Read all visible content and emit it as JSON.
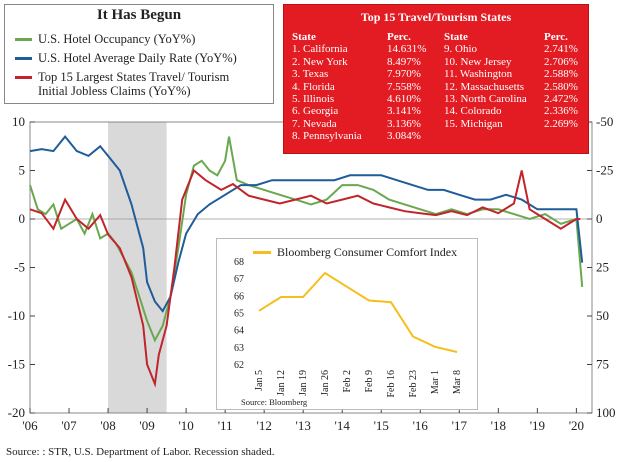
{
  "chart_data": [
    {
      "type": "line",
      "title": "It Has Begun",
      "x": [
        "'06",
        "'07",
        "'08",
        "'09",
        "'10",
        "'11",
        "'12",
        "'13",
        "'14",
        "'15",
        "'16",
        "'17",
        "'18",
        "'19",
        "'20"
      ],
      "y_left_ticks": [
        10,
        5,
        0,
        -5,
        -10,
        -15,
        -20
      ],
      "y_right_ticks": [
        -50,
        -25,
        0,
        25,
        50,
        75,
        100
      ],
      "ylim_left": [
        -20,
        10
      ],
      "ylim_right": [
        100,
        -50
      ],
      "recession_shaded": [
        2008.0,
        2009.5
      ],
      "series": [
        {
          "name": "U.S. Hotel Occupancy (YoY%)",
          "color": "#6aa84f",
          "axis": "left",
          "points": [
            [
              2006.0,
              3.5
            ],
            [
              2006.2,
              1.0
            ],
            [
              2006.4,
              0.5
            ],
            [
              2006.6,
              1.5
            ],
            [
              2006.8,
              -1.0
            ],
            [
              2007.0,
              -0.5
            ],
            [
              2007.2,
              0.0
            ],
            [
              2007.4,
              -1.5
            ],
            [
              2007.6,
              0.5
            ],
            [
              2007.8,
              -2.0
            ],
            [
              2008.0,
              -1.5
            ],
            [
              2008.2,
              -2.5
            ],
            [
              2008.4,
              -4.0
            ],
            [
              2008.6,
              -5.5
            ],
            [
              2008.8,
              -8.0
            ],
            [
              2009.0,
              -10.5
            ],
            [
              2009.2,
              -12.5
            ],
            [
              2009.4,
              -11.0
            ],
            [
              2009.6,
              -8.0
            ],
            [
              2009.8,
              -3.0
            ],
            [
              2010.0,
              2.5
            ],
            [
              2010.2,
              5.5
            ],
            [
              2010.4,
              6.0
            ],
            [
              2010.6,
              5.0
            ],
            [
              2010.8,
              4.5
            ],
            [
              2011.0,
              6.0
            ],
            [
              2011.1,
              8.5
            ],
            [
              2011.3,
              4.0
            ],
            [
              2011.6,
              3.5
            ],
            [
              2012.0,
              3.0
            ],
            [
              2012.4,
              2.5
            ],
            [
              2012.8,
              2.0
            ],
            [
              2013.2,
              1.5
            ],
            [
              2013.6,
              2.0
            ],
            [
              2014.0,
              3.5
            ],
            [
              2014.4,
              3.5
            ],
            [
              2014.8,
              3.0
            ],
            [
              2015.2,
              2.0
            ],
            [
              2015.6,
              1.5
            ],
            [
              2016.0,
              1.0
            ],
            [
              2016.4,
              0.5
            ],
            [
              2016.8,
              1.0
            ],
            [
              2017.2,
              0.5
            ],
            [
              2017.6,
              1.0
            ],
            [
              2018.0,
              1.0
            ],
            [
              2018.4,
              0.5
            ],
            [
              2018.8,
              0.0
            ],
            [
              2019.2,
              0.5
            ],
            [
              2019.6,
              -0.5
            ],
            [
              2020.0,
              0.0
            ],
            [
              2020.15,
              -7.0
            ]
          ]
        },
        {
          "name": "U.S. Hotel Average Daily Rate (YoY%)",
          "color": "#1f5c99",
          "axis": "left",
          "points": [
            [
              2006.0,
              7.0
            ],
            [
              2006.3,
              7.2
            ],
            [
              2006.6,
              7.0
            ],
            [
              2006.9,
              8.5
            ],
            [
              2007.2,
              7.0
            ],
            [
              2007.5,
              6.5
            ],
            [
              2007.8,
              7.5
            ],
            [
              2008.0,
              6.5
            ],
            [
              2008.3,
              5.0
            ],
            [
              2008.6,
              1.5
            ],
            [
              2008.9,
              -3.0
            ],
            [
              2009.0,
              -6.5
            ],
            [
              2009.2,
              -8.5
            ],
            [
              2009.4,
              -9.5
            ],
            [
              2009.6,
              -8.0
            ],
            [
              2009.8,
              -4.5
            ],
            [
              2010.0,
              -1.5
            ],
            [
              2010.3,
              0.5
            ],
            [
              2010.6,
              1.5
            ],
            [
              2011.0,
              2.5
            ],
            [
              2011.4,
              3.5
            ],
            [
              2011.8,
              3.5
            ],
            [
              2012.2,
              4.0
            ],
            [
              2012.6,
              4.0
            ],
            [
              2013.0,
              4.0
            ],
            [
              2013.4,
              4.0
            ],
            [
              2013.8,
              4.0
            ],
            [
              2014.2,
              4.5
            ],
            [
              2014.6,
              4.5
            ],
            [
              2015.0,
              4.5
            ],
            [
              2015.4,
              4.0
            ],
            [
              2015.8,
              3.5
            ],
            [
              2016.2,
              3.0
            ],
            [
              2016.6,
              3.0
            ],
            [
              2017.0,
              2.5
            ],
            [
              2017.4,
              2.0
            ],
            [
              2017.8,
              2.0
            ],
            [
              2018.2,
              2.5
            ],
            [
              2018.6,
              2.0
            ],
            [
              2019.0,
              1.0
            ],
            [
              2019.4,
              1.0
            ],
            [
              2019.8,
              1.0
            ],
            [
              2020.0,
              1.0
            ],
            [
              2020.15,
              -4.5
            ]
          ]
        },
        {
          "name": "Top 15 Largest States Travel/ Tourism Initial Jobless Claims (YoY%)",
          "color": "#c0252b",
          "axis": "right",
          "points": [
            [
              2006.0,
              -5
            ],
            [
              2006.3,
              -3
            ],
            [
              2006.6,
              5
            ],
            [
              2006.9,
              -10
            ],
            [
              2007.2,
              0
            ],
            [
              2007.5,
              5
            ],
            [
              2007.8,
              -2
            ],
            [
              2008.0,
              8
            ],
            [
              2008.3,
              15
            ],
            [
              2008.6,
              30
            ],
            [
              2008.9,
              55
            ],
            [
              2009.0,
              75
            ],
            [
              2009.2,
              85
            ],
            [
              2009.3,
              70
            ],
            [
              2009.5,
              55
            ],
            [
              2009.7,
              25
            ],
            [
              2009.9,
              -10
            ],
            [
              2010.2,
              -25
            ],
            [
              2010.5,
              -20
            ],
            [
              2010.9,
              -15
            ],
            [
              2011.2,
              -18
            ],
            [
              2011.6,
              -12
            ],
            [
              2012.0,
              -10
            ],
            [
              2012.4,
              -8
            ],
            [
              2012.8,
              -10
            ],
            [
              2013.2,
              -12
            ],
            [
              2013.6,
              -8
            ],
            [
              2014.0,
              -10
            ],
            [
              2014.4,
              -12
            ],
            [
              2014.8,
              -8
            ],
            [
              2015.2,
              -6
            ],
            [
              2015.6,
              -4
            ],
            [
              2016.0,
              -3
            ],
            [
              2016.4,
              -2
            ],
            [
              2016.8,
              -4
            ],
            [
              2017.2,
              -2
            ],
            [
              2017.6,
              -6
            ],
            [
              2018.0,
              -3
            ],
            [
              2018.4,
              -8
            ],
            [
              2018.6,
              -25
            ],
            [
              2018.8,
              -5
            ],
            [
              2019.2,
              0
            ],
            [
              2019.6,
              5
            ],
            [
              2020.0,
              0
            ],
            [
              2020.1,
              0
            ]
          ]
        }
      ]
    },
    {
      "type": "line",
      "title": "Bloomberg Consumer Comfort Index",
      "categories": [
        "Jan 5",
        "Jan 12",
        "Jan 19",
        "Jan 26",
        "Feb 2",
        "Feb 9",
        "Feb 16",
        "Feb 23",
        "Mar 1",
        "Mar 8"
      ],
      "ylim": [
        62,
        68
      ],
      "y_ticks": [
        68,
        67,
        66,
        65,
        64,
        63,
        62
      ],
      "series": [
        {
          "name": "Bloomberg Consumer Comfort Index",
          "color": "#f6be1a",
          "values": [
            65.1,
            65.9,
            65.9,
            67.3,
            66.5,
            65.7,
            65.6,
            63.6,
            63.0,
            62.7
          ]
        }
      ]
    }
  ],
  "legend": {
    "title": "It Has Begun",
    "items": [
      {
        "label": "U.S. Hotel Occupancy (YoY%)",
        "color": "#6aa84f"
      },
      {
        "label": "U.S. Hotel Average Daily Rate (YoY%)",
        "color": "#1f5c99"
      },
      {
        "label": "Top 15 Largest States Travel/ Tourism Initial Jobless Claims (YoY%)",
        "color": "#c0252b"
      }
    ]
  },
  "table": {
    "title": "Top 15 Travel/Tourism States",
    "headers": [
      "State",
      "Perc.",
      "State",
      "Perc."
    ],
    "left": [
      [
        "1. California",
        "14.631%"
      ],
      [
        "2. New York",
        "8.497%"
      ],
      [
        "3. Texas",
        "7.970%"
      ],
      [
        "4. Florida",
        "7.558%"
      ],
      [
        "5. Illinois",
        "4.610%"
      ],
      [
        "6. Georgia",
        "3.141%"
      ],
      [
        "7. Nevada",
        "3.136%"
      ],
      [
        "8. Pennsylvania",
        "3.084%"
      ]
    ],
    "right": [
      [
        "9. Ohio",
        "2.741%"
      ],
      [
        "10. New Jersey",
        "2.706%"
      ],
      [
        "11. Washington",
        "2.588%"
      ],
      [
        "12. Massachusetts",
        "2.580%"
      ],
      [
        "13. North Carolina",
        "2.472%"
      ],
      [
        "14. Colorado",
        "2.336%"
      ],
      [
        "15. Michigan",
        "2.269%"
      ]
    ]
  },
  "inset_source": "Source: Bloomberg",
  "source": "Source: : STR, U.S. Department of Labor. Recession shaded."
}
